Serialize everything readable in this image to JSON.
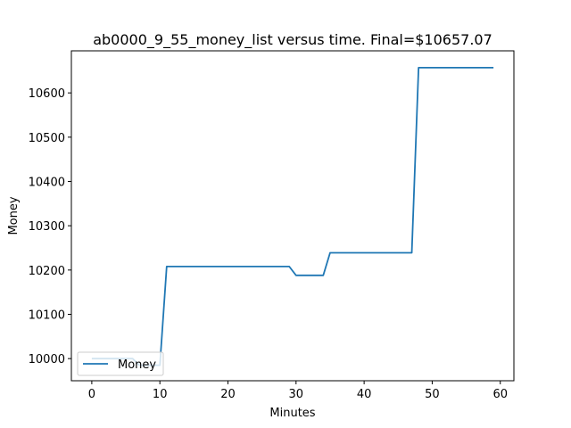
{
  "chart_data": {
    "type": "line",
    "title": "ab0000_9_55_money_list versus time. Final=$10657.07",
    "xlabel": "Minutes",
    "ylabel": "Money",
    "xlim": [
      -3,
      62
    ],
    "ylim": [
      9950,
      10695
    ],
    "xticks": [
      0,
      10,
      20,
      30,
      40,
      50,
      60
    ],
    "yticks": [
      10000,
      10100,
      10200,
      10300,
      10400,
      10500,
      10600
    ],
    "grid": false,
    "legend_position": "lower left",
    "series": [
      {
        "name": "Money",
        "color": "#1f77b4",
        "x": [
          0,
          1,
          2,
          3,
          4,
          5,
          6,
          7,
          8,
          9,
          10,
          11,
          12,
          13,
          14,
          15,
          16,
          17,
          18,
          19,
          20,
          21,
          22,
          23,
          24,
          25,
          26,
          27,
          28,
          29,
          30,
          31,
          32,
          33,
          34,
          35,
          36,
          37,
          38,
          39,
          40,
          41,
          42,
          43,
          44,
          45,
          46,
          47,
          48,
          49,
          50,
          51,
          52,
          53,
          54,
          55,
          56,
          57,
          58,
          59
        ],
        "y": [
          10000,
          10000,
          10000,
          10000,
          10000,
          10000,
          10000,
          9985,
          9985,
          9985,
          9985,
          10208,
          10208,
          10208,
          10208,
          10208,
          10208,
          10208,
          10208,
          10208,
          10208,
          10208,
          10208,
          10208,
          10208,
          10208,
          10208,
          10208,
          10208,
          10208,
          10188,
          10188,
          10188,
          10188,
          10188,
          10239,
          10239,
          10239,
          10239,
          10239,
          10239,
          10239,
          10239,
          10239,
          10239,
          10239,
          10239,
          10239,
          10657.07,
          10657.07,
          10657.07,
          10657.07,
          10657.07,
          10657.07,
          10657.07,
          10657.07,
          10657.07,
          10657.07,
          10657.07,
          10657.07
        ]
      }
    ]
  }
}
